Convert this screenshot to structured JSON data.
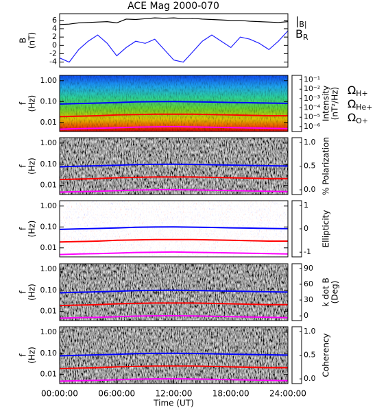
{
  "chart_data": [
    {
      "type": "line",
      "title": "ACE Mag 2000-070",
      "ylabel": [
        "B",
        "(nT)"
      ],
      "x": [
        0,
        1,
        2,
        3,
        4,
        5,
        6,
        7,
        8,
        9,
        10,
        11,
        12,
        13,
        14,
        15,
        16,
        17,
        18,
        19,
        20,
        21,
        22,
        23,
        24
      ],
      "xlim": [
        0,
        24
      ],
      "ylim": [
        -5.2,
        7.6
      ],
      "yticks": [
        -4,
        -2,
        0,
        2,
        4,
        6
      ],
      "series": [
        {
          "name": "|B|",
          "color": "#000000",
          "values": [
            5.0,
            5.1,
            5.4,
            5.5,
            5.6,
            5.7,
            5.4,
            6.3,
            6.2,
            6.4,
            6.6,
            6.5,
            6.6,
            6.4,
            6.5,
            6.3,
            6.2,
            6.1,
            6.0,
            6.0,
            5.8,
            5.7,
            5.6,
            5.5,
            5.7
          ]
        },
        {
          "name": "BR",
          "color": "#2020ff",
          "values": [
            -3.0,
            -4.0,
            -1.0,
            1.0,
            2.5,
            0.5,
            -2.5,
            -0.5,
            1.0,
            0.5,
            1.5,
            -1.0,
            -3.5,
            -4.0,
            -1.5,
            1.0,
            2.5,
            1.0,
            -0.5,
            2.0,
            1.5,
            0.5,
            -1.0,
            1.0,
            3.5
          ]
        }
      ]
    },
    {
      "type": "spectrogram",
      "ylabel": [
        "f",
        "(Hz)"
      ],
      "log": true,
      "ylim": [
        0.0037,
        1.8
      ],
      "yticks": [
        {
          "value": 1,
          "label": "1.00"
        },
        {
          "value": 0.1,
          "label": "0.10"
        },
        {
          "value": 0.01,
          "label": "0.01"
        }
      ],
      "xlim": [
        0,
        24
      ],
      "colormap": "rainbow",
      "colorbar": {
        "label": [
          "Intensity",
          "(nT²/Hz)"
        ],
        "log": true,
        "clim": [
          3e-07,
          0.3
        ],
        "ticks": [
          {
            "value": 0.1,
            "label": "10⁻¹"
          },
          {
            "value": 0.01,
            "label": "10⁻²"
          },
          {
            "value": 0.001,
            "label": "10⁻³"
          },
          {
            "value": 0.0001,
            "label": "10⁻⁴"
          },
          {
            "value": 1e-05,
            "label": "10⁻⁵"
          },
          {
            "value": 1e-06,
            "label": "10⁻⁶"
          }
        ]
      },
      "x": [
        0,
        2,
        4,
        6,
        8,
        10,
        12,
        14,
        16,
        18,
        20,
        22,
        24
      ],
      "series": [
        {
          "name": "ΩH+",
          "color": "#0000ff",
          "values": [
            0.076,
            0.081,
            0.085,
            0.09,
            0.096,
            0.099,
            0.1,
            0.098,
            0.095,
            0.091,
            0.088,
            0.085,
            0.082
          ]
        },
        {
          "name": "ΩHe+",
          "color": "#ff0000",
          "values": [
            0.019,
            0.02,
            0.021,
            0.023,
            0.024,
            0.025,
            0.025,
            0.025,
            0.024,
            0.023,
            0.022,
            0.021,
            0.021
          ]
        },
        {
          "name": "ΩO+",
          "color": "#ff00ff",
          "values": [
            0.0048,
            0.0051,
            0.0053,
            0.0056,
            0.006,
            0.0062,
            0.0063,
            0.0061,
            0.0059,
            0.0057,
            0.0055,
            0.0053,
            0.0051
          ]
        }
      ]
    },
    {
      "type": "spectrogram",
      "ylabel": [
        "f",
        "(Hz)"
      ],
      "log": true,
      "ylim": [
        0.0037,
        1.8
      ],
      "yticks": [
        {
          "value": 1,
          "label": "1.00"
        },
        {
          "value": 0.1,
          "label": "0.10"
        },
        {
          "value": 0.01,
          "label": "0.01"
        }
      ],
      "xlim": [
        0,
        24
      ],
      "colormap": "gray",
      "colorbar": {
        "label": [
          "% Polarization"
        ],
        "clim": [
          -0.1,
          1.1
        ],
        "ticks": [
          {
            "value": 1,
            "label": "1.0"
          },
          0.5,
          {
            "value": 0,
            "label": "0.0"
          }
        ]
      },
      "x": [
        0,
        2,
        4,
        6,
        8,
        10,
        12,
        14,
        16,
        18,
        20,
        22,
        24
      ],
      "series": [
        {
          "color": "#0000ff",
          "values": [
            0.076,
            0.081,
            0.085,
            0.09,
            0.096,
            0.099,
            0.1,
            0.098,
            0.095,
            0.091,
            0.088,
            0.085,
            0.082
          ]
        },
        {
          "color": "#ff0000",
          "values": [
            0.019,
            0.02,
            0.021,
            0.023,
            0.024,
            0.025,
            0.025,
            0.025,
            0.024,
            0.023,
            0.022,
            0.021,
            0.021
          ]
        },
        {
          "color": "#ff00ff",
          "values": [
            0.0048,
            0.0051,
            0.0053,
            0.0056,
            0.006,
            0.0062,
            0.0063,
            0.0061,
            0.0059,
            0.0057,
            0.0055,
            0.0053,
            0.0051
          ]
        }
      ]
    },
    {
      "type": "spectrogram",
      "ylabel": [
        "f",
        "(Hz)"
      ],
      "log": true,
      "ylim": [
        0.0037,
        1.8
      ],
      "yticks": [
        {
          "value": 1,
          "label": "1.00"
        },
        {
          "value": 0.1,
          "label": "0.10"
        },
        {
          "value": 0.01,
          "label": "0.01"
        }
      ],
      "xlim": [
        0,
        24
      ],
      "colormap": "bwr",
      "colorbar": {
        "label": [
          "Ellipticity"
        ],
        "clim": [
          -1.2,
          1.2
        ],
        "ticks": [
          1,
          0,
          -1
        ]
      },
      "x": [
        0,
        2,
        4,
        6,
        8,
        10,
        12,
        14,
        16,
        18,
        20,
        22,
        24
      ],
      "series": [
        {
          "color": "#0000ff",
          "values": [
            0.076,
            0.081,
            0.085,
            0.09,
            0.096,
            0.099,
            0.1,
            0.098,
            0.095,
            0.091,
            0.088,
            0.085,
            0.082
          ]
        },
        {
          "color": "#ff0000",
          "values": [
            0.019,
            0.02,
            0.021,
            0.023,
            0.024,
            0.025,
            0.025,
            0.025,
            0.024,
            0.023,
            0.022,
            0.021,
            0.021
          ]
        },
        {
          "color": "#ff00ff",
          "values": [
            0.0048,
            0.0051,
            0.0053,
            0.0056,
            0.006,
            0.0062,
            0.0063,
            0.0061,
            0.0059,
            0.0057,
            0.0055,
            0.0053,
            0.0051
          ]
        }
      ]
    },
    {
      "type": "spectrogram",
      "ylabel": [
        "f",
        "(Hz)"
      ],
      "log": true,
      "ylim": [
        0.0037,
        1.8
      ],
      "yticks": [
        {
          "value": 1,
          "label": "1.00"
        },
        {
          "value": 0.1,
          "label": "0.10"
        },
        {
          "value": 0.01,
          "label": "0.01"
        }
      ],
      "xlim": [
        0,
        24
      ],
      "colormap": "gray",
      "colorbar": {
        "label": [
          "k dot B",
          "(Deg)"
        ],
        "clim": [
          -9,
          99
        ],
        "ticks": [
          90,
          60,
          30,
          0
        ]
      },
      "x": [
        0,
        2,
        4,
        6,
        8,
        10,
        12,
        14,
        16,
        18,
        20,
        22,
        24
      ],
      "series": [
        {
          "color": "#0000ff",
          "values": [
            0.076,
            0.081,
            0.085,
            0.09,
            0.096,
            0.099,
            0.1,
            0.098,
            0.095,
            0.091,
            0.088,
            0.085,
            0.082
          ]
        },
        {
          "color": "#ff0000",
          "values": [
            0.019,
            0.02,
            0.021,
            0.023,
            0.024,
            0.025,
            0.025,
            0.025,
            0.024,
            0.023,
            0.022,
            0.021,
            0.021
          ]
        },
        {
          "color": "#ff00ff",
          "values": [
            0.0048,
            0.0051,
            0.0053,
            0.0056,
            0.006,
            0.0062,
            0.0063,
            0.0061,
            0.0059,
            0.0057,
            0.0055,
            0.0053,
            0.0051
          ]
        }
      ]
    },
    {
      "type": "spectrogram",
      "ylabel": [
        "f",
        "(Hz)"
      ],
      "log": true,
      "ylim": [
        0.0037,
        1.8
      ],
      "yticks": [
        {
          "value": 1,
          "label": "1.00"
        },
        {
          "value": 0.1,
          "label": "0.10"
        },
        {
          "value": 0.01,
          "label": "0.01"
        }
      ],
      "xlim": [
        0,
        24
      ],
      "colormap": "gray",
      "colorbar": {
        "label": [
          "Coherency"
        ],
        "clim": [
          -0.1,
          1.1
        ],
        "ticks": [
          {
            "value": 1,
            "label": "1.0"
          },
          0.5,
          {
            "value": 0,
            "label": "0.0"
          }
        ]
      },
      "x": [
        0,
        2,
        4,
        6,
        8,
        10,
        12,
        14,
        16,
        18,
        20,
        22,
        24
      ],
      "series": [
        {
          "color": "#0000ff",
          "values": [
            0.076,
            0.081,
            0.085,
            0.09,
            0.096,
            0.099,
            0.1,
            0.098,
            0.095,
            0.091,
            0.088,
            0.085,
            0.082
          ]
        },
        {
          "color": "#ff0000",
          "values": [
            0.019,
            0.02,
            0.021,
            0.023,
            0.024,
            0.025,
            0.025,
            0.025,
            0.024,
            0.023,
            0.022,
            0.021,
            0.021
          ]
        },
        {
          "color": "#ff00ff",
          "values": [
            0.0048,
            0.0051,
            0.0053,
            0.0056,
            0.006,
            0.0062,
            0.0063,
            0.0061,
            0.0059,
            0.0057,
            0.0055,
            0.0053,
            0.0051
          ]
        }
      ],
      "xticks": [
        {
          "value": 0,
          "label": "00:00:00"
        },
        {
          "value": 6,
          "label": "06:00:00"
        },
        {
          "value": 12,
          "label": "12:00:00"
        },
        {
          "value": 18,
          "label": "18:00:00"
        },
        {
          "value": 24,
          "label": "24:00:00"
        }
      ],
      "xlabel": "Time (UT)"
    }
  ]
}
